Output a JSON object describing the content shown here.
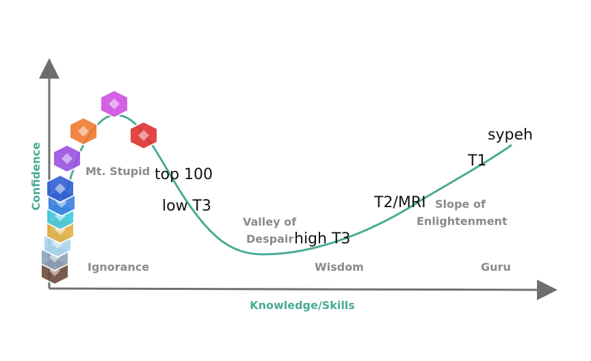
{
  "axes": {
    "y_label": "Confidence",
    "x_label": "Knowledge/Skills"
  },
  "stages": [
    {
      "lines": [
        "Mt. Stupid"
      ]
    },
    {
      "lines": [
        "Ignorance"
      ]
    },
    {
      "lines": [
        "Valley of",
        "Despair"
      ]
    },
    {
      "lines": [
        "Wisdom"
      ]
    },
    {
      "lines": [
        "Slope of",
        "Enlightenment"
      ]
    },
    {
      "lines": [
        "Guru"
      ]
    }
  ],
  "annotations": [
    "top 100",
    "low T3",
    "high T3",
    "T2/MRI",
    "T1",
    "sypeh"
  ]
}
